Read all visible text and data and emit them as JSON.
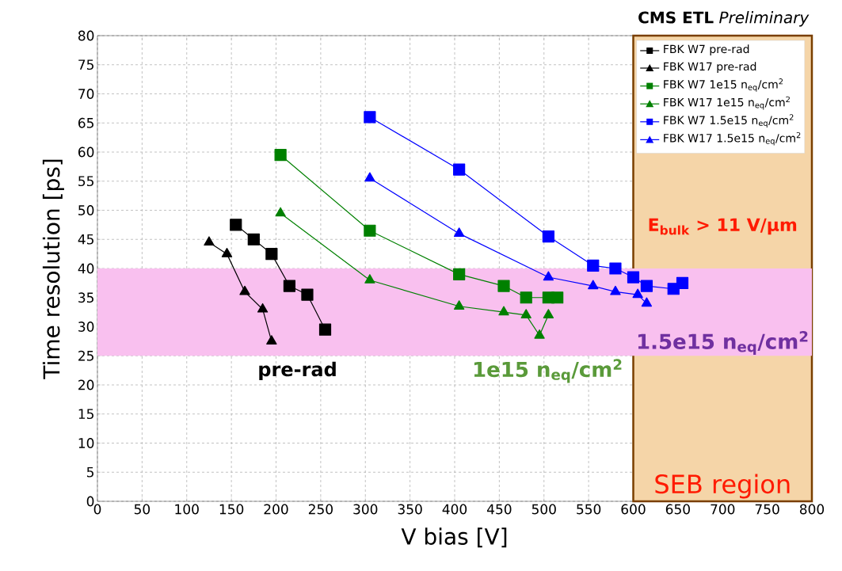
{
  "chart_data": {
    "type": "line",
    "title": "**CMS ETL** *Preliminary*",
    "xlabel": "V bias [V]",
    "ylabel": "Time resolution [ps]",
    "xlim": [
      0,
      800
    ],
    "xticks": [
      0,
      50,
      100,
      150,
      200,
      250,
      300,
      350,
      400,
      450,
      500,
      550,
      600,
      650,
      700,
      750,
      800
    ],
    "ylim": [
      0,
      80
    ],
    "yticks": [
      0,
      5,
      10,
      15,
      20,
      25,
      30,
      35,
      40,
      45,
      50,
      55,
      60,
      65,
      70,
      75,
      80
    ],
    "grid": true,
    "legend": "top right",
    "line_style": "solid",
    "series": [
      {
        "name": "FBK W7 pre-rad",
        "color": "#000000",
        "marker": "square",
        "x": [
          155,
          175,
          195,
          215,
          235,
          255
        ],
        "values": [
          47.5,
          45,
          42.5,
          37,
          35.5,
          29.5
        ]
      },
      {
        "name": "FBK W17 pre-rad",
        "color": "#000000",
        "marker": "triangle",
        "x": [
          125,
          145,
          165,
          185,
          195
        ],
        "values": [
          44.5,
          42.5,
          36,
          33,
          27.5
        ]
      },
      {
        "name": "FBK W7 1e15 n$_{eq}$/cm$^{2}$",
        "color": "#008000",
        "marker": "square",
        "x": [
          205,
          305,
          405,
          455,
          480,
          505,
          515
        ],
        "values": [
          59.5,
          46.5,
          39,
          37,
          35,
          35,
          35
        ]
      },
      {
        "name": "FBK W17 1e15 n$_{eq}$/cm$^{2}$",
        "color": "#008000",
        "marker": "triangle",
        "x": [
          205,
          305,
          405,
          455,
          480,
          495,
          505
        ],
        "values": [
          49.5,
          38,
          33.5,
          32.5,
          32,
          28.5,
          32
        ]
      },
      {
        "name": "FBK W7 1.5e15 n$_{eq}$/cm$^{2}$",
        "color": "#0000ff",
        "marker": "square",
        "x": [
          305,
          405,
          505,
          555,
          580,
          600,
          615,
          645,
          655
        ],
        "values": [
          66,
          57,
          45.5,
          40.5,
          40,
          38.5,
          37,
          36.5,
          37.5
        ]
      },
      {
        "name": "FBK W17 1.5e15 n$_{eq}$/cm$^{2}$",
        "color": "#0000ff",
        "marker": "triangle",
        "x": [
          305,
          405,
          505,
          555,
          580,
          605,
          615
        ],
        "values": [
          55.5,
          46,
          38.5,
          37,
          36,
          35.5,
          34
        ]
      }
    ],
    "bands": [
      {
        "axis": "x",
        "from": 600,
        "to": 800,
        "label": "SEB region",
        "color": "#f5d5a8"
      },
      {
        "axis": "y",
        "from": 25,
        "to": 40,
        "color": "#f9c0ef"
      }
    ],
    "annotations": [
      "pre-rad",
      "1e15 n$_{eq}$/cm$^{2}$",
      "1.5e15 n$_{eq}$/cm$^{2}$",
      "E$_{bulk}$ > 11 V/µm"
    ]
  }
}
